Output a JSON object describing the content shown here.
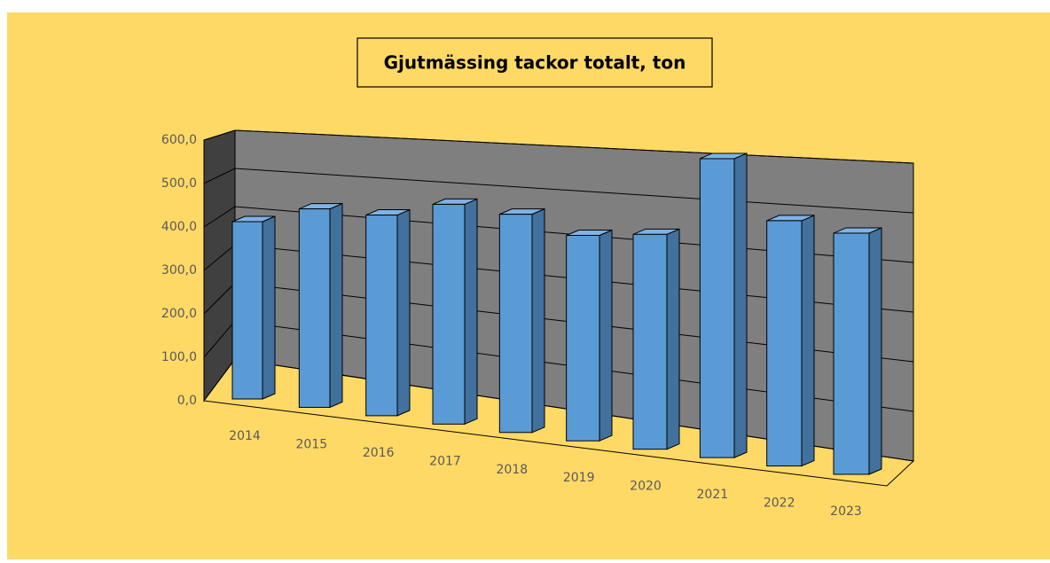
{
  "chart_data": {
    "type": "bar3d",
    "title": "Gjutmässing tackor totalt, ton",
    "categories": [
      "2014",
      "2015",
      "2016",
      "2017",
      "2018",
      "2019",
      "2020",
      "2021",
      "2022",
      "2023"
    ],
    "values": [
      400,
      431,
      420,
      444,
      426,
      388,
      393,
      530,
      422,
      403
    ],
    "color": "#5b9bd5",
    "ylim": [
      0,
      600
    ],
    "yticks": [
      {
        "value": 0,
        "label": "0,0"
      },
      {
        "value": 100,
        "label": "100,0"
      },
      {
        "value": 200,
        "label": "200,0"
      },
      {
        "value": 300,
        "label": "300,0"
      },
      {
        "value": 400,
        "label": "400,0"
      },
      {
        "value": 500,
        "label": "500,0"
      },
      {
        "value": 600,
        "label": "600,0"
      }
    ],
    "grid": true
  }
}
